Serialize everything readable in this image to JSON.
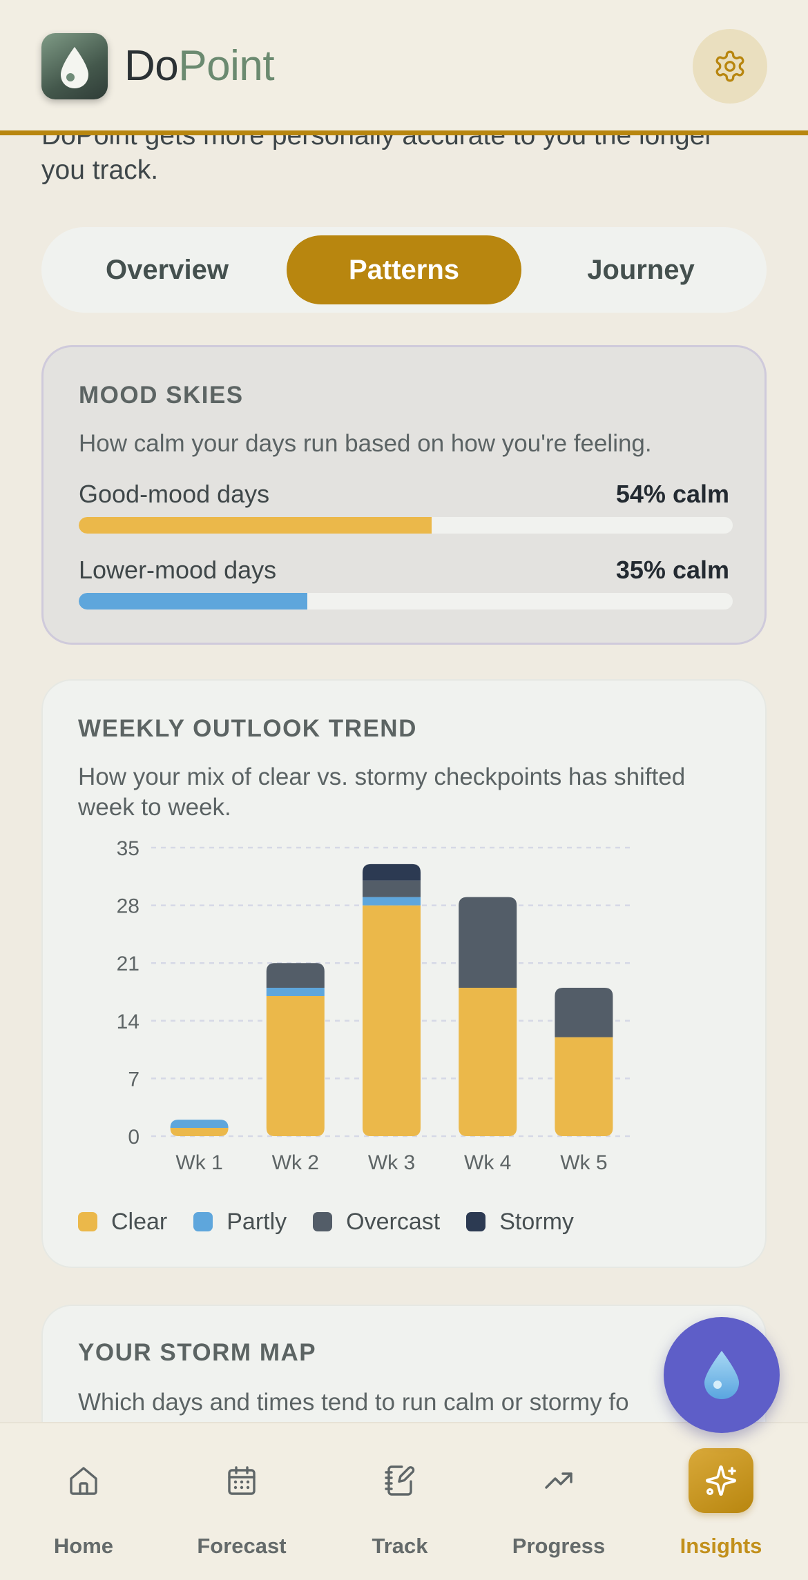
{
  "app": {
    "name_part1": "Do",
    "name_part2": "Point",
    "accent_color": "#b8860f",
    "brand_green": "#6b8a70"
  },
  "intro": {
    "text": "DoPoint gets more personally accurate to you the longer you track."
  },
  "tabs": [
    {
      "label": "Overview",
      "active": false
    },
    {
      "label": "Patterns",
      "active": true
    },
    {
      "label": "Journey",
      "active": false
    }
  ],
  "mood_skies": {
    "title": "MOOD SKIES",
    "subtitle": "How calm your days run based on how you're feeling.",
    "rows": [
      {
        "label": "Good-mood days",
        "value_text": "54% calm",
        "fraction": 0.54,
        "color": "#ebb84a"
      },
      {
        "label": "Lower-mood days",
        "value_text": "35% calm",
        "fraction": 0.35,
        "color": "#5ea6dc"
      }
    ]
  },
  "weekly_trend": {
    "title": "WEEKLY OUTLOOK TREND",
    "subtitle": "How your mix of clear vs. stormy checkpoints has shifted week to week."
  },
  "chart_data": {
    "type": "bar",
    "stacked": true,
    "categories": [
      "Wk 1",
      "Wk 2",
      "Wk 3",
      "Wk 4",
      "Wk 5"
    ],
    "series": [
      {
        "name": "Clear",
        "color": "#ebb84a",
        "values": [
          1,
          17,
          28,
          18,
          12
        ]
      },
      {
        "name": "Partly",
        "color": "#5ea6dc",
        "values": [
          1,
          1,
          1,
          0,
          0
        ]
      },
      {
        "name": "Overcast",
        "color": "#535d68",
        "values": [
          0,
          3,
          2,
          11,
          6
        ]
      },
      {
        "name": "Stormy",
        "color": "#2c3a52",
        "values": [
          0,
          0,
          2,
          0,
          0
        ]
      }
    ],
    "yticks": [
      0,
      7,
      14,
      21,
      28,
      35
    ],
    "ylim": [
      0,
      35
    ],
    "grid": true,
    "legend_position": "bottom-left"
  },
  "storm_map": {
    "title": "YOUR STORM MAP",
    "subtitle": "Which days and times tend to run calm or stormy fo"
  },
  "bottom_nav": [
    {
      "label": "Home",
      "icon": "home-icon",
      "active": false
    },
    {
      "label": "Forecast",
      "icon": "calendar-icon",
      "active": false
    },
    {
      "label": "Track",
      "icon": "notebook-pen-icon",
      "active": false
    },
    {
      "label": "Progress",
      "icon": "trending-up-icon",
      "active": false
    },
    {
      "label": "Insights",
      "icon": "sparkles-icon",
      "active": true
    }
  ]
}
